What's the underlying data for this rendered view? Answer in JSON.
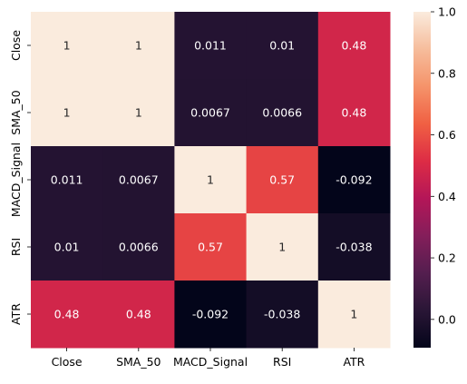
{
  "chart_data": {
    "type": "heatmap",
    "rows": [
      "Close",
      "SMA_50",
      "MACD_Signal",
      "RSI",
      "ATR"
    ],
    "columns": [
      "Close",
      "SMA_50",
      "MACD_Signal",
      "RSI",
      "ATR"
    ],
    "values": [
      [
        1,
        1,
        0.011,
        0.01,
        0.48
      ],
      [
        1,
        1,
        0.0067,
        0.0066,
        0.48
      ],
      [
        0.011,
        0.0067,
        1,
        0.57,
        -0.092
      ],
      [
        0.01,
        0.0066,
        0.57,
        1,
        -0.038
      ],
      [
        0.48,
        0.48,
        -0.092,
        -0.038,
        1
      ]
    ],
    "value_labels": [
      [
        "1",
        "1",
        "0.011",
        "0.01",
        "0.48"
      ],
      [
        "1",
        "1",
        "0.0067",
        "0.0066",
        "0.48"
      ],
      [
        "0.011",
        "0.0067",
        "1",
        "0.57",
        "-0.092"
      ],
      [
        "0.01",
        "0.0066",
        "0.57",
        "1",
        "-0.038"
      ],
      [
        "0.48",
        "0.48",
        "-0.092",
        "-0.038",
        "1"
      ]
    ],
    "colorbar": {
      "min": -0.092,
      "max": 1.0,
      "ticks": [
        1.0,
        0.8,
        0.6,
        0.4,
        0.2,
        0.0
      ],
      "tick_labels": [
        "1.0",
        "0.8",
        "0.6",
        "0.4",
        "0.2",
        "0.0"
      ],
      "colormap": "rocket",
      "colormap_stops": [
        "#03051a",
        "#2a1636",
        "#541e4f",
        "#841e5a",
        "#b41658",
        "#dd2c45",
        "#f06043",
        "#f5936a",
        "#f6bd9c",
        "#faebdd"
      ]
    },
    "grid": false,
    "legend": "colorbar-right"
  }
}
